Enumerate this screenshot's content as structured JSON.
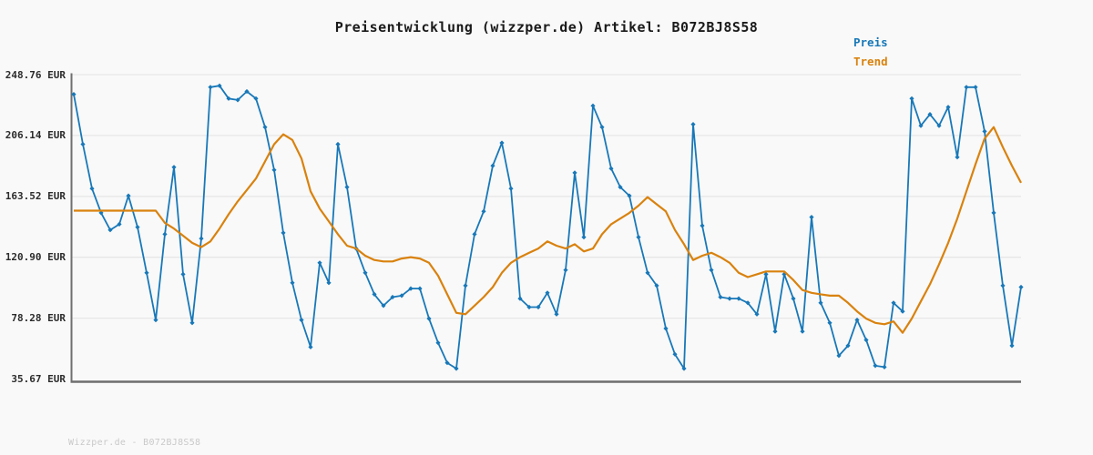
{
  "title": "Preisentwicklung (wizzper.de) Artikel: B072BJ8S58",
  "footer": "Wizzper.de - B072BJ8S58",
  "legend": [
    {
      "label": "Preis",
      "color": "#1878b8"
    },
    {
      "label": "Trend",
      "color": "#d9820e"
    }
  ],
  "chart_data": {
    "type": "line",
    "title": "Preisentwicklung (wizzper.de) Artikel: B072BJ8S58",
    "xlabel": "",
    "ylabel": "",
    "unit": "EUR",
    "ylim": [
      35.67,
      248.76
    ],
    "grid": true,
    "legend_position": "top-right",
    "y_ticks": [
      {
        "label": "248.76 EUR",
        "value": 248.76
      },
      {
        "label": "206.14 EUR",
        "value": 206.14
      },
      {
        "label": "163.52 EUR",
        "value": 163.52
      },
      {
        "label": "120.90 EUR",
        "value": 120.9
      },
      {
        "label": "78.28 EUR",
        "value": 78.28
      },
      {
        "label": "35.67 EUR",
        "value": 35.67
      }
    ],
    "series": [
      {
        "name": "Preis",
        "color": "#1878b8",
        "markers": true,
        "values": [
          235,
          200,
          169,
          152,
          140,
          144,
          164,
          142,
          110,
          77,
          137,
          184,
          109,
          75,
          134,
          240,
          241,
          232,
          231,
          237,
          232,
          212,
          182,
          138,
          103,
          77,
          58,
          117,
          103,
          200,
          170,
          127,
          110,
          95,
          87,
          93,
          94,
          99,
          99,
          78,
          61,
          47,
          43,
          101,
          137,
          153,
          185,
          201,
          169,
          92,
          86,
          86,
          96,
          81,
          112,
          180,
          135,
          227,
          212,
          183,
          170,
          164,
          135,
          110,
          101,
          71,
          53,
          43,
          214,
          143,
          112,
          93,
          92,
          92,
          89,
          81,
          109,
          69,
          109,
          92,
          69,
          149,
          89,
          75,
          52,
          59,
          77,
          63,
          45,
          44,
          89,
          83,
          232,
          213,
          221,
          213,
          226,
          191,
          240,
          240,
          209,
          152,
          101,
          59,
          100
        ]
      },
      {
        "name": "Trend",
        "color": "#d9820e",
        "markers": false,
        "values": [
          153.5,
          153.5,
          153.5,
          153.5,
          153.5,
          153.5,
          153.5,
          153.5,
          153.5,
          153.5,
          145,
          141,
          136,
          131,
          128,
          132,
          141,
          151,
          160,
          168,
          176,
          188,
          200,
          207,
          203,
          190,
          167,
          155,
          146,
          137,
          129,
          127,
          122,
          119,
          118,
          118,
          120,
          121,
          120,
          117,
          108,
          95,
          82,
          81,
          87,
          93,
          100,
          110,
          117,
          121,
          124,
          127,
          132,
          129,
          127,
          130,
          125,
          127,
          137,
          144,
          148,
          152,
          157,
          163,
          158,
          153,
          140,
          130,
          119,
          122,
          124,
          121,
          117,
          110,
          107,
          109,
          111,
          111,
          111,
          105,
          98,
          96,
          95,
          94,
          94,
          89,
          83,
          78,
          75,
          74,
          76,
          68,
          78,
          90,
          102,
          116,
          131,
          148,
          167,
          186,
          204,
          212,
          198,
          185,
          173
        ]
      }
    ]
  }
}
